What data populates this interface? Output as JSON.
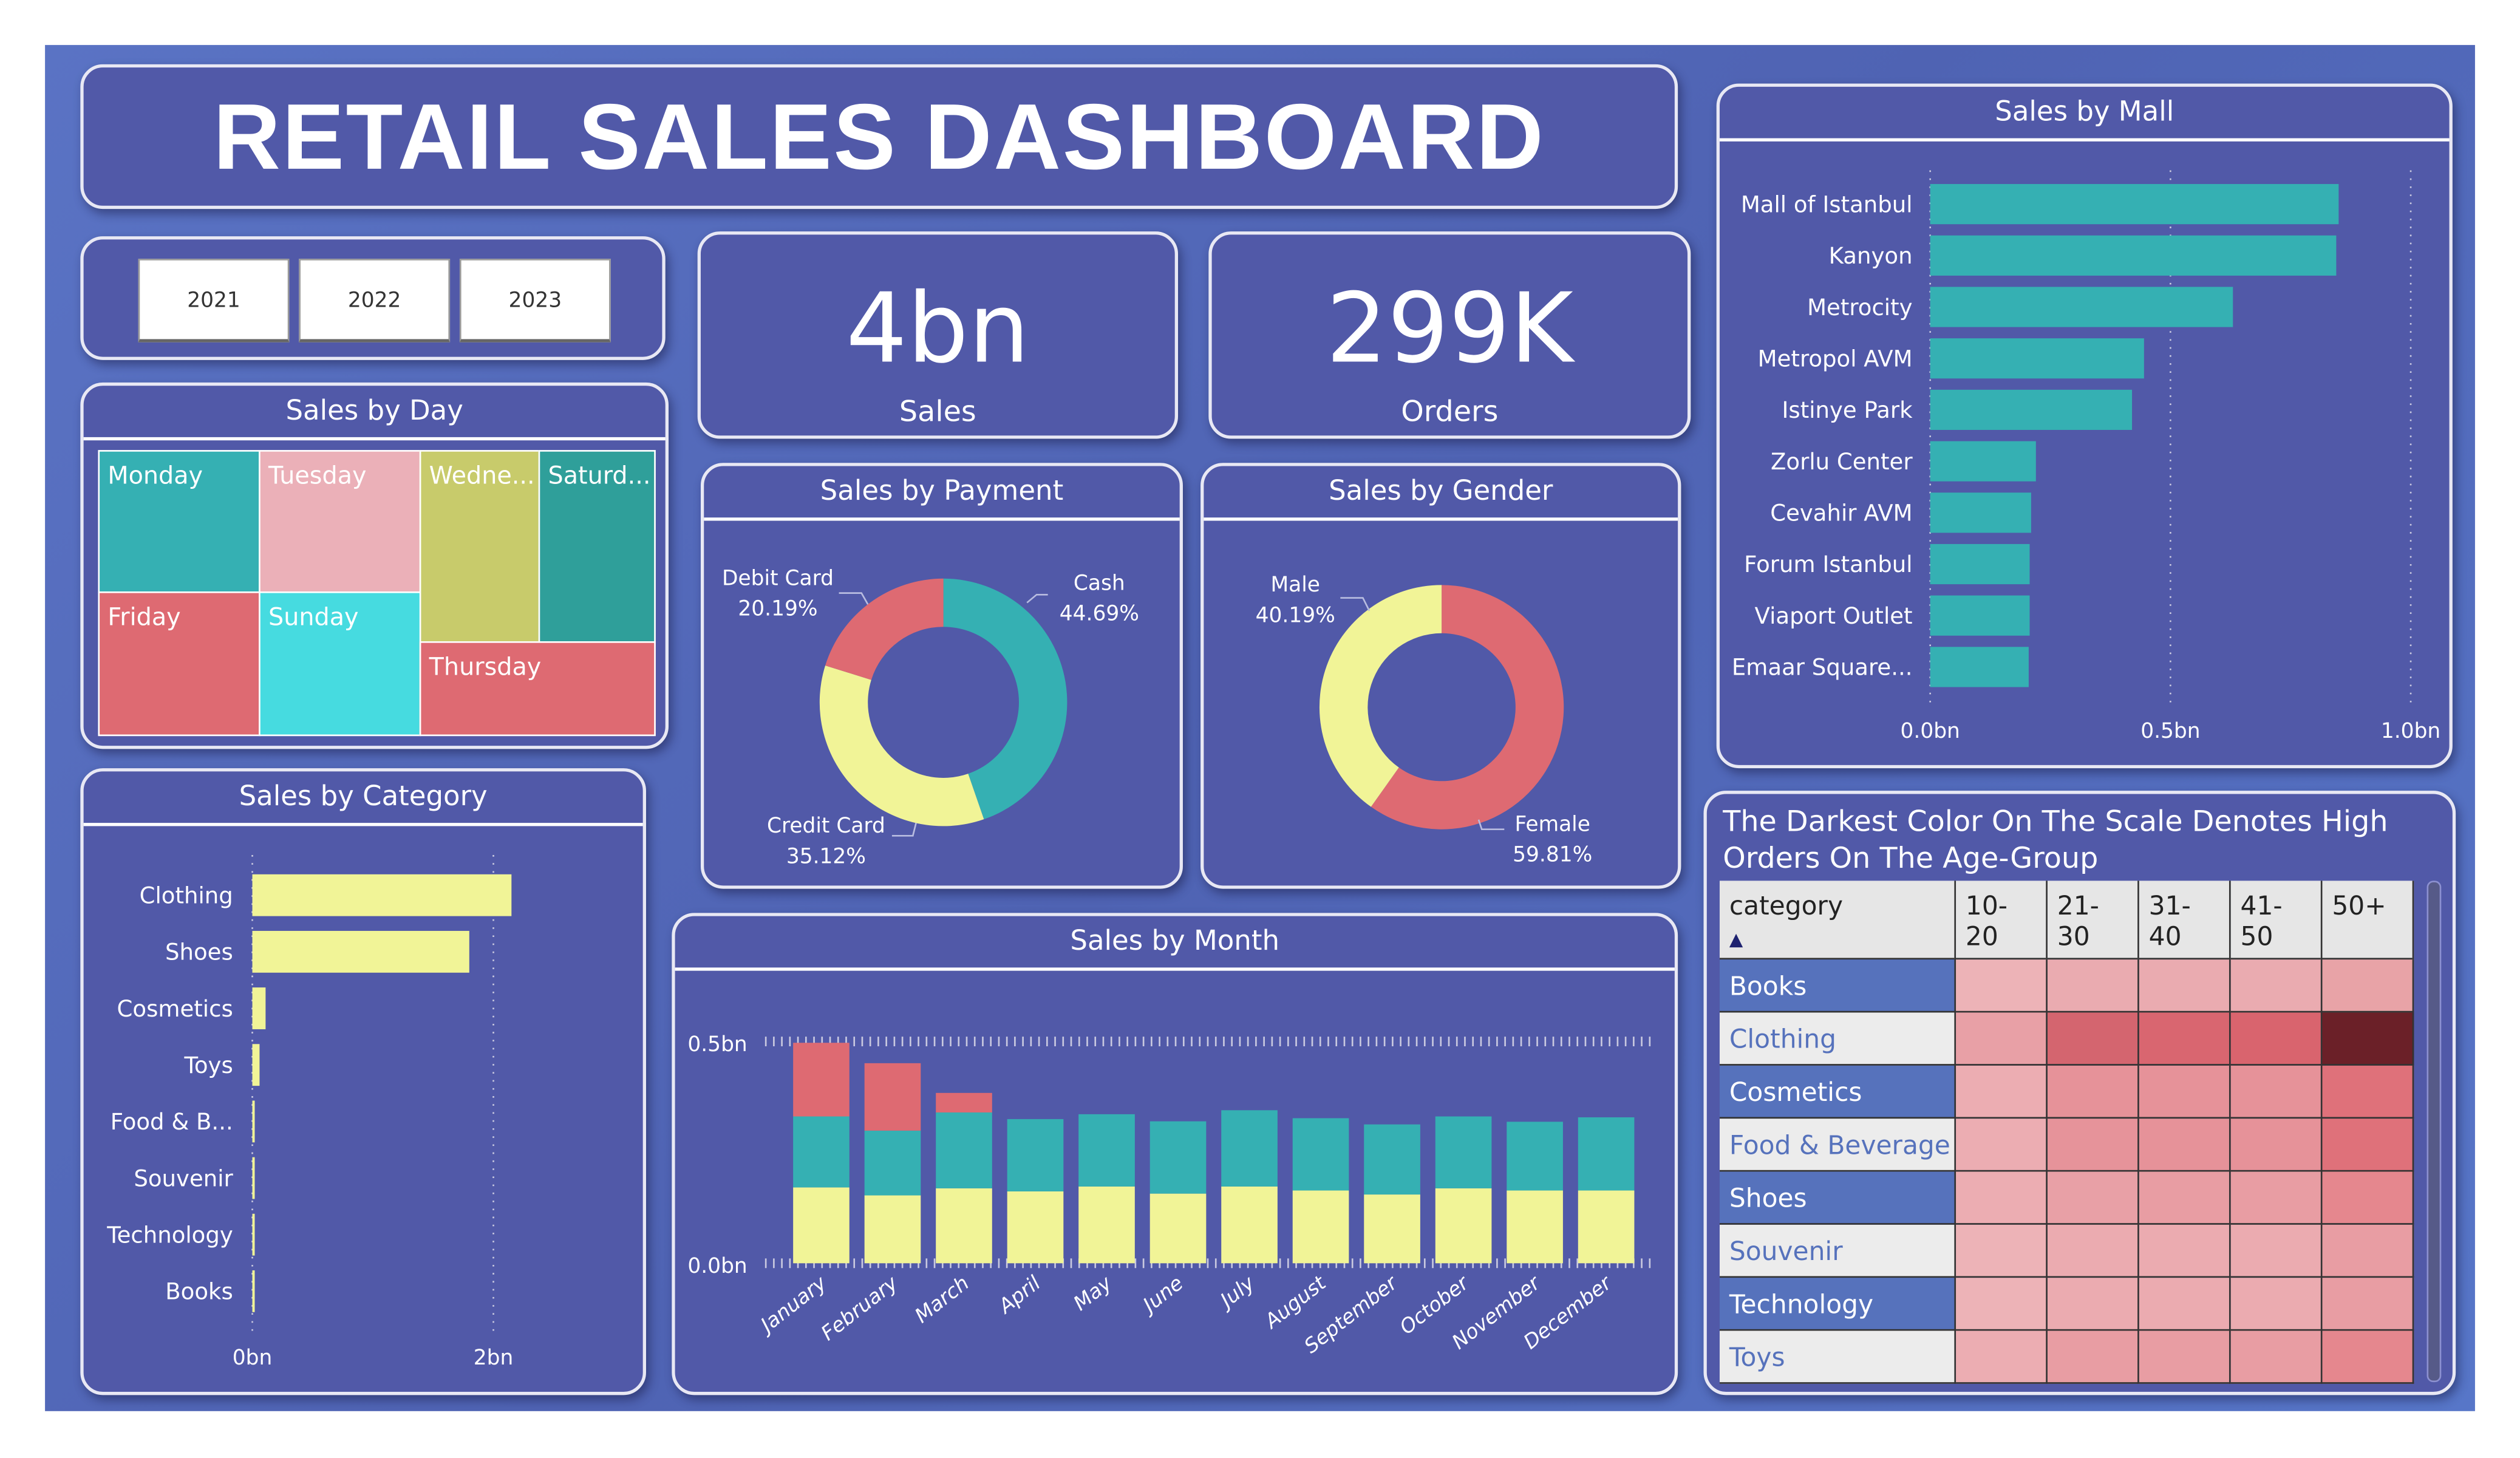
{
  "title": "RETAIL SALES DASHBOARD",
  "year_slicer": [
    "2021",
    "2022",
    "2023"
  ],
  "kpis": {
    "sales": {
      "value": "4bn",
      "label": "Sales"
    },
    "orders": {
      "value": "299K",
      "label": "Orders"
    }
  },
  "sales_by_day": {
    "title": "Sales by Day",
    "tiles": [
      "Monday",
      "Tuesday",
      "Wedne...",
      "Saturd...",
      "Friday",
      "Sunday",
      "Thursday"
    ],
    "colors": [
      "#35b0b3",
      "#ebb0b8",
      "#c8cb6b",
      "#2f9f9a",
      "#de6a72",
      "#46dbe0",
      "#de6a72"
    ]
  },
  "colors": {
    "panel": "#5159a8",
    "background": "#5470c0",
    "yellow": "#f1f497",
    "teal": "#35b0b3",
    "red": "#de6a72"
  },
  "chart_data": [
    {
      "type": "bar",
      "title": "Sales by Category",
      "orientation": "horizontal",
      "categories": [
        "Clothing",
        "Shoes",
        "Cosmetics",
        "Toys",
        "Food & B...",
        "Souvenir",
        "Technology",
        "Books"
      ],
      "values": [
        2.15,
        1.8,
        0.11,
        0.06,
        0.015,
        0.01,
        0.01,
        0.01
      ],
      "unit": "bn",
      "ticks": [
        "0bn",
        "2bn"
      ],
      "xlim": [
        0,
        2.2
      ],
      "color": "#f1f497"
    },
    {
      "type": "pie",
      "title": "Sales by Payment",
      "donut": true,
      "slices": [
        {
          "label": "Cash",
          "pct": "44.69%",
          "value": 44.69,
          "color": "#35b0b3"
        },
        {
          "label": "Credit Card",
          "pct": "35.12%",
          "value": 35.12,
          "color": "#f1f497"
        },
        {
          "label": "Debit Card",
          "pct": "20.19%",
          "value": 20.19,
          "color": "#de6a72"
        }
      ]
    },
    {
      "type": "pie",
      "title": "Sales by Gender",
      "donut": true,
      "slices": [
        {
          "label": "Female",
          "pct": "59.81%",
          "value": 59.81,
          "color": "#de6a72"
        },
        {
          "label": "Male",
          "pct": "40.19%",
          "value": 40.19,
          "color": "#f1f497"
        }
      ]
    },
    {
      "type": "bar",
      "title": "Sales by Month",
      "stacked": true,
      "unit": "bn",
      "ylim": [
        0,
        0.5
      ],
      "ticks": [
        "0.0bn",
        "0.5bn"
      ],
      "categories": [
        "January",
        "February",
        "March",
        "April",
        "May",
        "June",
        "July",
        "August",
        "September",
        "October",
        "November",
        "December"
      ],
      "series": [
        {
          "color": "#f1f497",
          "values": [
            0.171,
            0.153,
            0.169,
            0.162,
            0.173,
            0.157,
            0.173,
            0.164,
            0.155,
            0.169,
            0.164,
            0.164
          ]
        },
        {
          "color": "#35b0b3",
          "values": [
            0.16,
            0.146,
            0.171,
            0.163,
            0.163,
            0.163,
            0.172,
            0.163,
            0.158,
            0.162,
            0.155,
            0.165
          ]
        },
        {
          "color": "#de6a72",
          "values": [
            0.166,
            0.152,
            0.044,
            0,
            0,
            0,
            0,
            0,
            0,
            0,
            0,
            0
          ]
        }
      ]
    },
    {
      "type": "bar",
      "title": "Sales by Mall",
      "orientation": "horizontal",
      "unit": "bn",
      "xlim": [
        0,
        1.0
      ],
      "ticks": [
        "0.0bn",
        "0.5bn",
        "1.0bn"
      ],
      "categories": [
        "Mall of Istanbul",
        "Kanyon",
        "Metrocity",
        "Metropol AVM",
        "Istinye Park",
        "Zorlu Center",
        "Cevahir AVM",
        "Forum Istanbul",
        "Viaport Outlet",
        "Emaar Square..."
      ],
      "values": [
        0.85,
        0.845,
        0.63,
        0.445,
        0.42,
        0.22,
        0.21,
        0.207,
        0.207,
        0.205
      ],
      "color": "#35b0b3"
    },
    {
      "type": "heatmap",
      "title": "The Darkest Color On The Scale Denotes High Orders On The Age-Group",
      "row_header": "category",
      "sort": "ascending",
      "columns": [
        "10-20",
        "21-30",
        "31-40",
        "41-50",
        "50+"
      ],
      "rows": [
        {
          "label": "Books",
          "colors": [
            "#edb3b7",
            "#eaabb0",
            "#eaabb0",
            "#eaabb0",
            "#e8a3a7"
          ]
        },
        {
          "label": "Clothing",
          "colors": [
            "#e8a0a6",
            "#d4656f",
            "#d96670",
            "#d9646e",
            "#6b2028"
          ]
        },
        {
          "label": "Cosmetics",
          "colors": [
            "#ecadb2",
            "#e69299",
            "#e69299",
            "#e69299",
            "#df717a"
          ]
        },
        {
          "label": "Food & Beverage",
          "colors": [
            "#ecadb2",
            "#e6939a",
            "#e69299",
            "#e69299",
            "#df717a"
          ]
        },
        {
          "label": "Shoes",
          "colors": [
            "#ecadb2",
            "#e8a0a6",
            "#e89da3",
            "#e89da3",
            "#e5878e"
          ]
        },
        {
          "label": "Souvenir",
          "colors": [
            "#edb3b7",
            "#ebabb0",
            "#ebabb0",
            "#ebabb0",
            "#e89da3"
          ]
        },
        {
          "label": "Technology",
          "colors": [
            "#edb3b7",
            "#ebabb0",
            "#ebabb0",
            "#ebabb0",
            "#e89da3"
          ]
        },
        {
          "label": "Toys",
          "colors": [
            "#ecadb2",
            "#e89da3",
            "#e89da3",
            "#e89da3",
            "#e5878e"
          ]
        }
      ]
    }
  ]
}
